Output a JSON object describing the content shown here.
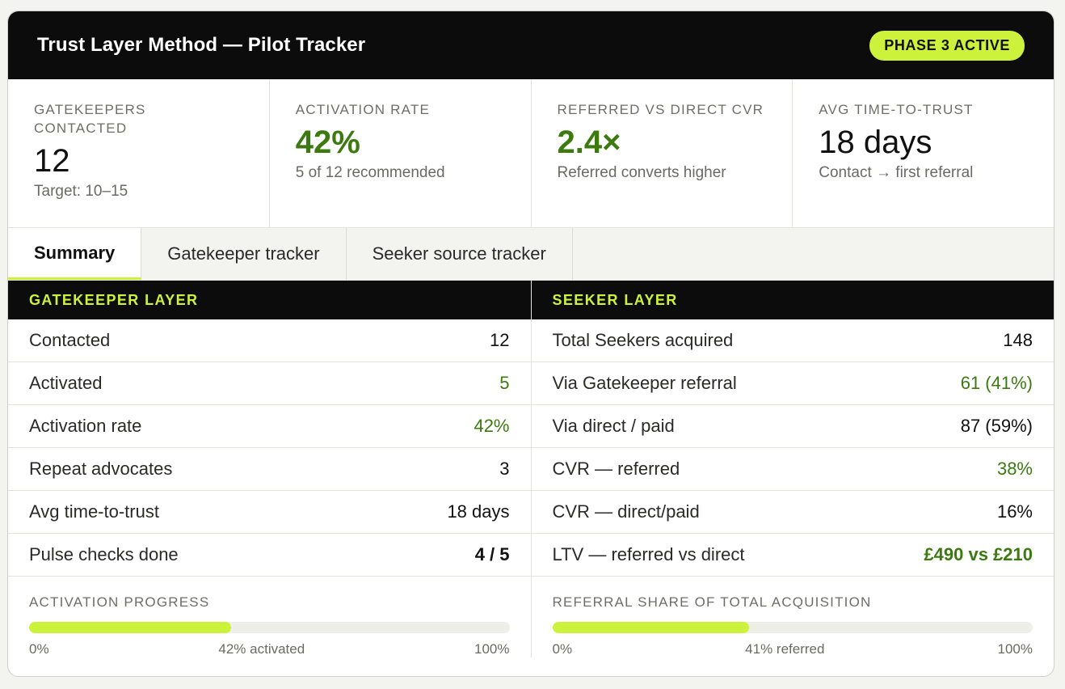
{
  "header": {
    "title": "Trust Layer Method — Pilot Tracker",
    "badge": "PHASE 3 ACTIVE"
  },
  "kpis": [
    {
      "label": "GATEKEEPERS CONTACTED",
      "value": "12",
      "sub": "Target: 10–15"
    },
    {
      "label": "ACTIVATION RATE",
      "value": "42%",
      "sub": "5 of 12 recommended"
    },
    {
      "label": "REFERRED VS DIRECT CVR",
      "value": "2.4×",
      "sub": "Referred converts higher"
    },
    {
      "label": "AVG TIME-TO-TRUST",
      "value": "18 days",
      "sub": "Contact → first referral"
    }
  ],
  "tabs": [
    {
      "label": "Summary",
      "active": true
    },
    {
      "label": "Gatekeeper tracker",
      "active": false
    },
    {
      "label": "Seeker source tracker",
      "active": false
    }
  ],
  "gatekeeper": {
    "heading": "GATEKEEPER LAYER",
    "rows": [
      {
        "label": "Contacted",
        "value": "12"
      },
      {
        "label": "Activated",
        "value": "5"
      },
      {
        "label": "Activation rate",
        "value": "42%"
      },
      {
        "label": "Repeat advocates",
        "value": "3"
      },
      {
        "label": "Avg time-to-trust",
        "value": "18 days"
      },
      {
        "label": "Pulse checks done",
        "value": "4 / 5"
      }
    ],
    "progress": {
      "label": "ACTIVATION PROGRESS",
      "fraction": 0.42,
      "min": "0%",
      "mid": "42% activated",
      "max": "100%"
    }
  },
  "seeker": {
    "heading": "SEEKER LAYER",
    "rows": [
      {
        "label": "Total Seekers acquired",
        "value": "148"
      },
      {
        "label": "Via Gatekeeper referral",
        "value": "61 (41%)"
      },
      {
        "label": "Via direct / paid",
        "value": "87 (59%)"
      },
      {
        "label": "CVR — referred",
        "value": "38%"
      },
      {
        "label": "CVR — direct/paid",
        "value": "16%"
      },
      {
        "label": "LTV — referred vs direct",
        "value": "£490 vs £210"
      }
    ],
    "progress": {
      "label": "REFERRAL SHARE OF TOTAL ACQUISITION",
      "fraction": 0.41,
      "min": "0%",
      "mid": "41% referred",
      "max": "100%"
    }
  },
  "colors": {
    "accent": "#cdf23c",
    "positive": "#3c7a10",
    "header_bg": "#0c0c0c"
  }
}
